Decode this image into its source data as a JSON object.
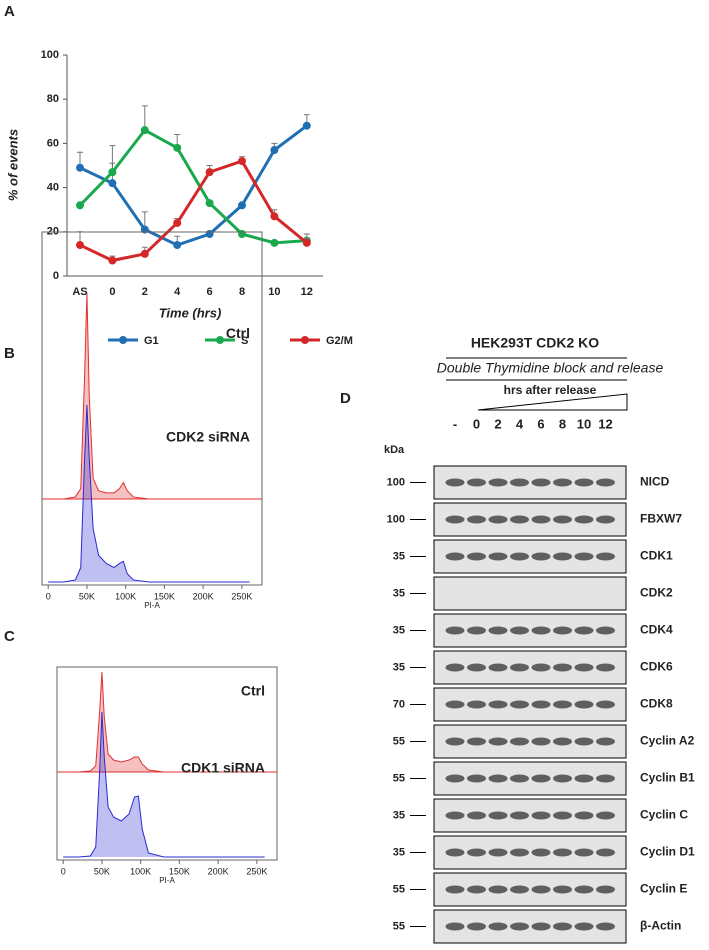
{
  "panels": [
    "A",
    "B",
    "C",
    "D"
  ],
  "chart_data": [
    {
      "type": "line",
      "xlabel": "Time (hrs)",
      "ylabel": "% of events",
      "categories": [
        "AS",
        "0",
        "2",
        "4",
        "6",
        "8",
        "10",
        "12"
      ],
      "ylim": [
        0,
        100
      ],
      "yticks": [
        0,
        20,
        40,
        60,
        80,
        100
      ],
      "legend": "bottom",
      "series": [
        {
          "name": "G1",
          "color": "#1f6fb5",
          "values": [
            49,
            42,
            21,
            14,
            19,
            32,
            57,
            68
          ],
          "errors": [
            7,
            9,
            8,
            4,
            1,
            1,
            3,
            5
          ]
        },
        {
          "name": "S",
          "color": "#1aa84c",
          "values": [
            32,
            47,
            66,
            58,
            33,
            19,
            15,
            16
          ],
          "errors": [
            1,
            12,
            11,
            6,
            1,
            1,
            1,
            3
          ]
        },
        {
          "name": "G2/M",
          "color": "#d62728",
          "values": [
            14,
            7,
            10,
            24,
            47,
            52,
            27,
            15
          ],
          "errors": [
            6,
            2,
            3,
            2,
            3,
            2,
            3,
            2
          ]
        }
      ]
    },
    {
      "type": "area",
      "xlabel": "PI-A",
      "xlim": [
        -8000,
        276000
      ],
      "xticks": [
        0,
        {
          "value": 50000,
          "label": "50K"
        },
        {
          "value": 100000,
          "label": "100K"
        },
        {
          "value": 150000,
          "label": "150K"
        },
        {
          "value": 200000,
          "label": "200K"
        },
        {
          "value": 250000,
          "label": "250K"
        }
      ],
      "x": [
        0,
        20000,
        35000,
        42000,
        47000,
        50000,
        53000,
        58000,
        65000,
        75000,
        85000,
        92000,
        97000,
        102000,
        110000,
        130000,
        260000
      ],
      "series": [
        {
          "name": "Ctrl",
          "color": "#e03030",
          "values": [
            0,
            0,
            1,
            5,
            60,
            100,
            50,
            10,
            4,
            3,
            3,
            5,
            8,
            4,
            1,
            0,
            0
          ]
        },
        {
          "name": "CDK2 siRNA",
          "color": "#2a2ad0",
          "values": [
            0,
            0,
            1,
            7,
            60,
            86,
            60,
            26,
            13,
            9,
            7,
            9,
            10,
            4,
            1,
            0,
            0
          ]
        }
      ]
    },
    {
      "type": "area",
      "xlabel": "PI-A",
      "xlim": [
        -8000,
        276000
      ],
      "xticks": [
        0,
        {
          "value": 50000,
          "label": "50K"
        },
        {
          "value": 100000,
          "label": "100K"
        },
        {
          "value": 150000,
          "label": "150K"
        },
        {
          "value": 200000,
          "label": "200K"
        },
        {
          "value": 250000,
          "label": "250K"
        }
      ],
      "x": [
        0,
        20000,
        35000,
        42000,
        47000,
        50000,
        53000,
        58000,
        65000,
        75000,
        85000,
        92000,
        97000,
        102000,
        110000,
        130000,
        260000
      ],
      "series": [
        {
          "name": "Ctrl",
          "color": "#e03030",
          "values": [
            0,
            0,
            1,
            6,
            60,
            100,
            55,
            18,
            12,
            10,
            12,
            15,
            15,
            8,
            2,
            0,
            0
          ]
        },
        {
          "name": "CDK1 siRNA",
          "color": "#2a2ad0",
          "values": [
            0,
            0,
            1,
            10,
            85,
            145,
            100,
            50,
            40,
            36,
            43,
            60,
            61,
            28,
            4,
            0,
            0
          ]
        }
      ]
    }
  ],
  "blot": {
    "header": "HEK293T CDK2 KO",
    "subheader": "Double Thymidine block and release",
    "lane_header": "hrs after release",
    "lanes": [
      "-",
      "0",
      "2",
      "4",
      "6",
      "8",
      "10",
      "12"
    ],
    "kda_label": "kDa",
    "rows": [
      {
        "marker": 100,
        "protein": "NICD"
      },
      {
        "marker": 100,
        "protein": "FBXW7"
      },
      {
        "marker": 35,
        "protein": "CDK1"
      },
      {
        "marker": 35,
        "protein": "CDK2"
      },
      {
        "marker": 35,
        "protein": "CDK4"
      },
      {
        "marker": 35,
        "protein": "CDK6"
      },
      {
        "marker": 70,
        "protein": "CDK8"
      },
      {
        "marker": 55,
        "protein": "Cyclin A2"
      },
      {
        "marker": 55,
        "protein": "Cyclin B1"
      },
      {
        "marker": 35,
        "protein": "Cyclin C"
      },
      {
        "marker": 35,
        "protein": "Cyclin D1"
      },
      {
        "marker": 55,
        "protein": "Cyclin E"
      },
      {
        "marker": 55,
        "protein": "β-Actin"
      }
    ]
  }
}
